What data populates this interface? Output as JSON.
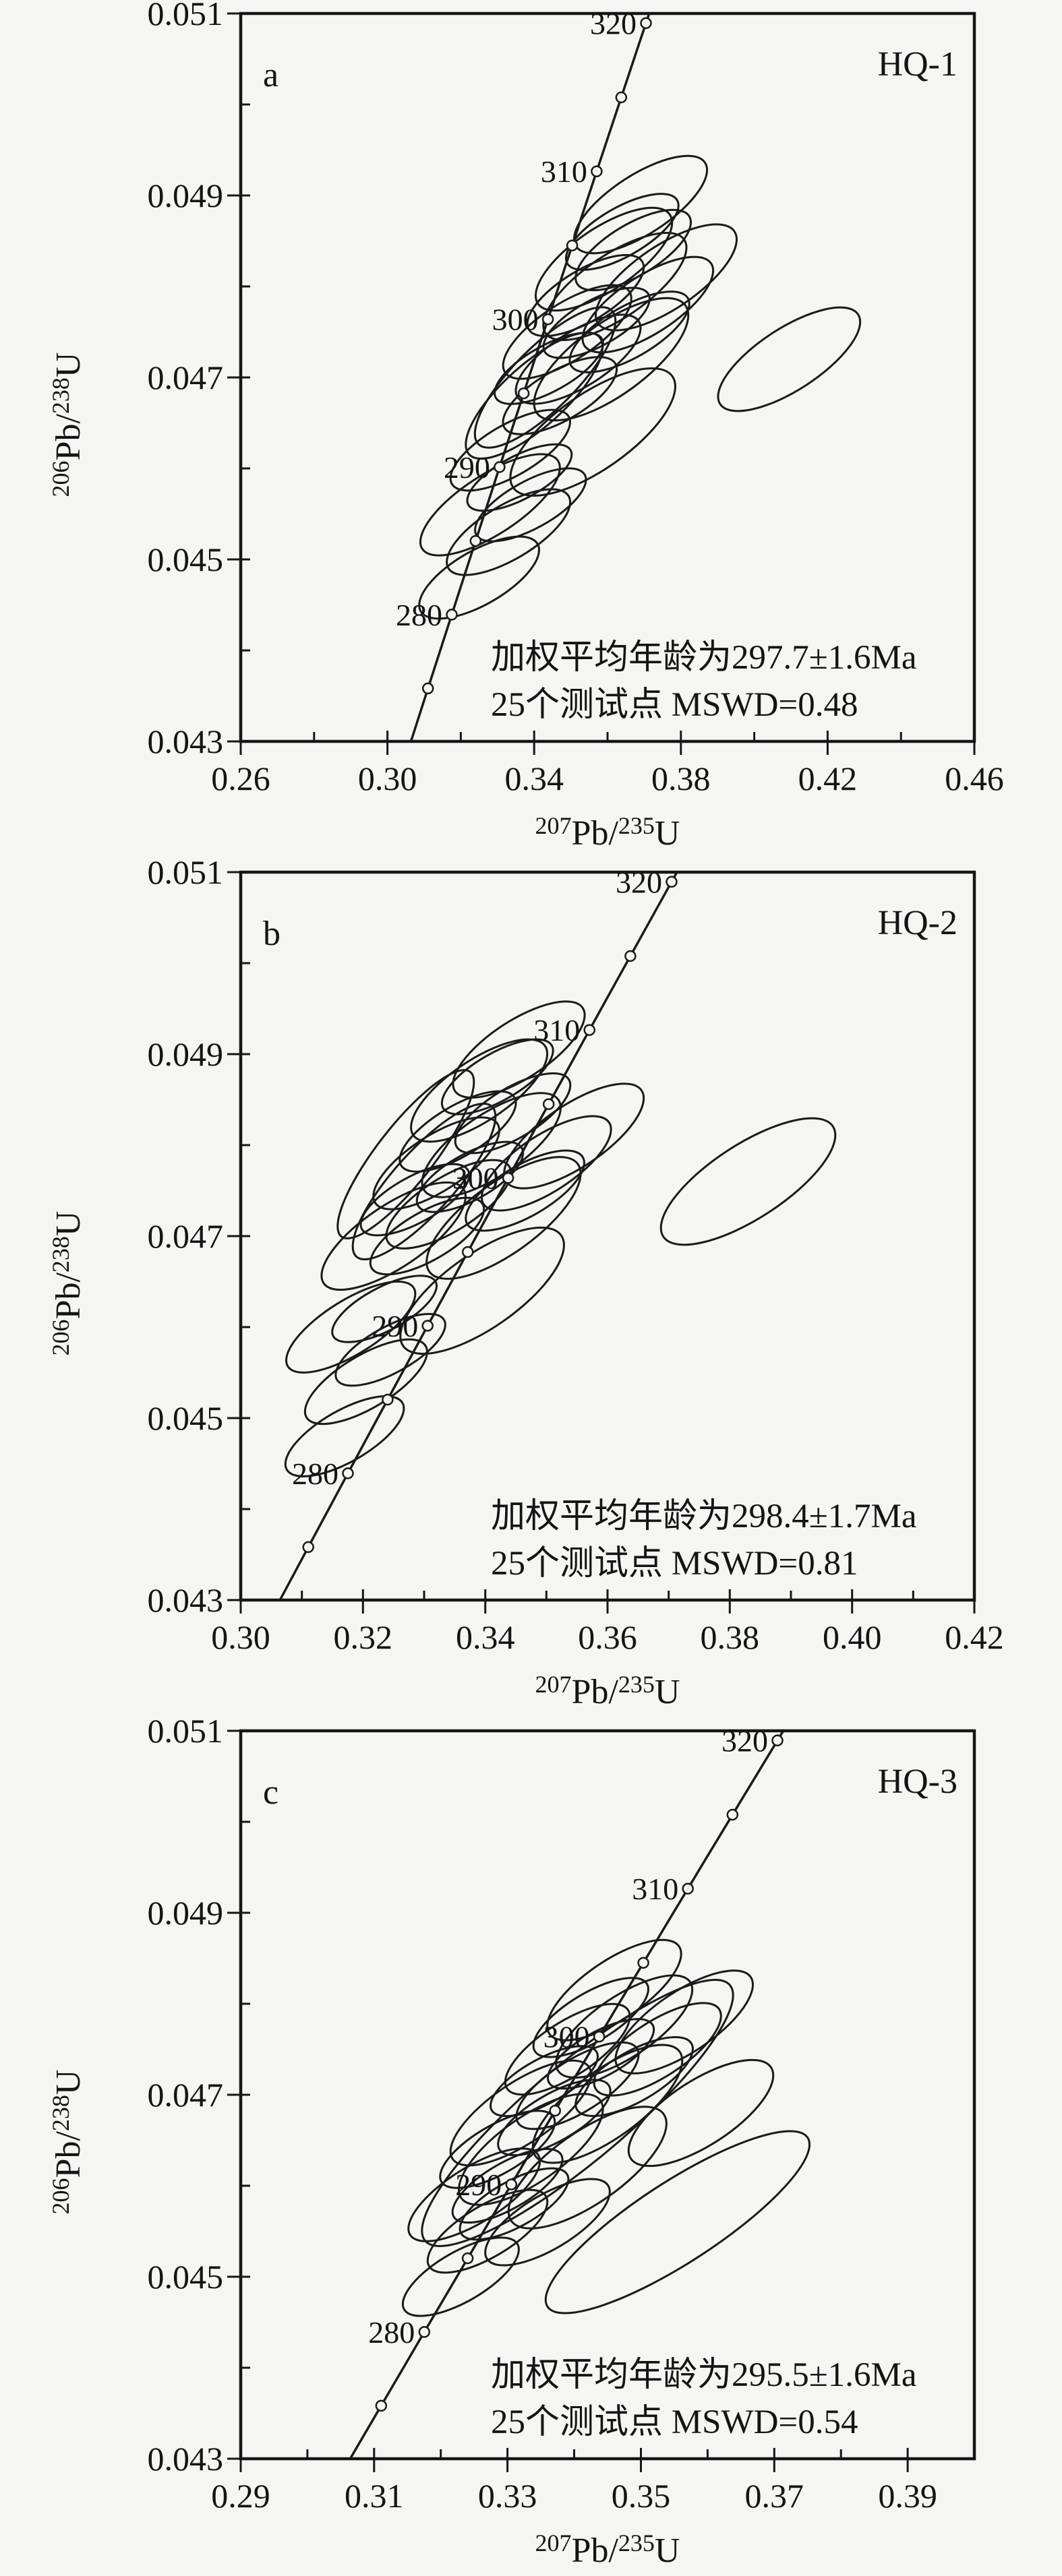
{
  "figure": {
    "background_color": "#f5f5f3",
    "ink_color": "#161616"
  },
  "concordia": {
    "curve": [
      [
        0.302053,
        0.04245
      ],
      [
        0.30462,
        0.042773
      ],
      [
        0.307192,
        0.043097
      ],
      [
        0.30977,
        0.043421
      ],
      [
        0.312352,
        0.043745
      ],
      [
        0.31494,
        0.044069
      ],
      [
        0.317533,
        0.044393
      ],
      [
        0.320131,
        0.044717
      ],
      [
        0.322734,
        0.045041
      ],
      [
        0.325343,
        0.045366
      ],
      [
        0.327956,
        0.04569
      ],
      [
        0.330575,
        0.046015
      ],
      [
        0.333199,
        0.046339
      ],
      [
        0.335828,
        0.046664
      ],
      [
        0.338462,
        0.046989
      ],
      [
        0.341101,
        0.047314
      ],
      [
        0.343746,
        0.047639
      ],
      [
        0.346396,
        0.047964
      ],
      [
        0.349051,
        0.048289
      ],
      [
        0.351711,
        0.048614
      ],
      [
        0.354377,
        0.04894
      ],
      [
        0.357047,
        0.049265
      ],
      [
        0.359724,
        0.049591
      ],
      [
        0.362405,
        0.049916
      ],
      [
        0.365092,
        0.050242
      ],
      [
        0.367784,
        0.050568
      ],
      [
        0.370481,
        0.050894
      ],
      [
        0.373184,
        0.05122
      ]
    ],
    "markers": [
      [
        270,
        0.30462,
        0.042773
      ],
      [
        275,
        0.311056,
        0.043582
      ],
      [
        280,
        0.317533,
        0.044393
      ],
      [
        285,
        0.324033,
        0.045203
      ],
      [
        290,
        0.330575,
        0.046015
      ],
      [
        295,
        0.337136,
        0.046825
      ],
      [
        300,
        0.343746,
        0.047639
      ],
      [
        305,
        0.350371,
        0.04845
      ],
      [
        310,
        0.357047,
        0.049265
      ],
      [
        315,
        0.363735,
        0.050078
      ],
      [
        320,
        0.370481,
        0.050894
      ]
    ]
  },
  "chart_data": [
    {
      "type": "scatter",
      "panel_label": "a",
      "sample_label": "HQ-1",
      "x_axis": {
        "label_parts": [
          "207",
          "Pb/",
          "235",
          "U"
        ],
        "min": 0.26,
        "max": 0.46,
        "major_step": 0.04,
        "minor_step": 0.02,
        "tick_labels": [
          "0.26",
          "0.30",
          "0.34",
          "0.38",
          "0.42",
          "0.46"
        ]
      },
      "y_axis": {
        "label_parts": [
          "206",
          "Pb/",
          "238",
          "U"
        ],
        "min": 0.043,
        "max": 0.051,
        "major_step": 0.002,
        "minor_step": 0.001,
        "tick_labels": [
          "0.043",
          "0.045",
          "0.047",
          "0.049",
          "0.051"
        ]
      },
      "age_tick_labels": [
        "280",
        "290",
        "300",
        "310",
        "320"
      ],
      "weighted_mean_age_ma": 297.7,
      "age_error_ma": 1.6,
      "n_spots": 25,
      "mswd": 0.48,
      "annotation_lines": [
        "加权平均年龄为297.7±1.6Ma",
        "25个测试点  MSWD=0.48"
      ],
      "error_ellipses": [
        [
          0.328,
          0.0456,
          120,
          44,
          -33
        ],
        [
          0.3335,
          0.0462,
          100,
          38,
          -30
        ],
        [
          0.34,
          0.0468,
          130,
          46,
          -42
        ],
        [
          0.344,
          0.0471,
          90,
          34,
          -29
        ],
        [
          0.349,
          0.0475,
          110,
          42,
          -33
        ],
        [
          0.354,
          0.0479,
          98,
          38,
          -31
        ],
        [
          0.359,
          0.0483,
          118,
          46,
          -34
        ],
        [
          0.364,
          0.0486,
          94,
          36,
          -30
        ],
        [
          0.369,
          0.0489,
          114,
          44,
          -33
        ],
        [
          0.336,
          0.0459,
          86,
          32,
          -28
        ],
        [
          0.343,
          0.047,
          140,
          46,
          -45
        ],
        [
          0.347,
          0.0468,
          95,
          37,
          -30
        ],
        [
          0.352,
          0.0472,
          106,
          41,
          -32
        ],
        [
          0.357,
          0.0476,
          88,
          34,
          -29
        ],
        [
          0.362,
          0.048,
          124,
          47,
          -34
        ],
        [
          0.367,
          0.0484,
          97,
          38,
          -31
        ],
        [
          0.333,
          0.0453,
          104,
          40,
          -31
        ],
        [
          0.339,
          0.0456,
          92,
          35,
          -29
        ],
        [
          0.361,
          0.0472,
          136,
          53,
          -36
        ],
        [
          0.366,
          0.0475,
          100,
          38,
          -30
        ],
        [
          0.371,
          0.0478,
          112,
          43,
          -33
        ],
        [
          0.376,
          0.0481,
          122,
          47,
          -34
        ],
        [
          0.325,
          0.0448,
          100,
          40,
          -30
        ],
        [
          0.356,
          0.0464,
          144,
          56,
          -35
        ],
        [
          0.4095,
          0.0472,
          122,
          46,
          -33
        ]
      ]
    },
    {
      "type": "scatter",
      "panel_label": "b",
      "sample_label": "HQ-2",
      "x_axis": {
        "label_parts": [
          "207",
          "Pb/",
          "235",
          "U"
        ],
        "min": 0.3,
        "max": 0.42,
        "major_step": 0.02,
        "minor_step": 0.01,
        "tick_labels": [
          "0.30",
          "0.32",
          "0.34",
          "0.36",
          "0.38",
          "0.40",
          "0.42"
        ]
      },
      "y_axis": {
        "label_parts": [
          "206",
          "Pb/",
          "238",
          "U"
        ],
        "min": 0.043,
        "max": 0.051,
        "major_step": 0.002,
        "minor_step": 0.001,
        "tick_labels": [
          "0.043",
          "0.045",
          "0.047",
          "0.049",
          "0.051"
        ]
      },
      "age_tick_labels": [
        "280",
        "290",
        "300",
        "310",
        "320"
      ],
      "weighted_mean_age_ma": 298.4,
      "age_error_ma": 1.7,
      "n_spots": 25,
      "mswd": 0.81,
      "annotation_lines": [
        "加权平均年龄为298.4±1.7Ma",
        "25个测试点  MSWD=0.81"
      ],
      "error_ellipses": [
        [
          0.318,
          0.046,
          110,
          40,
          -32
        ],
        [
          0.327,
          0.0479,
          155,
          42,
          -52
        ],
        [
          0.325,
          0.047,
          125,
          46,
          -34
        ],
        [
          0.3285,
          0.0474,
          90,
          34,
          -29
        ],
        [
          0.332,
          0.0478,
          108,
          41,
          -33
        ],
        [
          0.3355,
          0.04815,
          98,
          37,
          -31
        ],
        [
          0.339,
          0.0486,
          118,
          45,
          -34
        ],
        [
          0.342,
          0.04875,
          93,
          35,
          -30
        ],
        [
          0.3455,
          0.04905,
          113,
          43,
          -33
        ],
        [
          0.3235,
          0.0462,
          86,
          32,
          -28
        ],
        [
          0.33,
          0.0476,
          150,
          45,
          -48
        ],
        [
          0.3305,
          0.047,
          95,
          36,
          -30
        ],
        [
          0.334,
          0.04735,
          106,
          40,
          -32
        ],
        [
          0.3375,
          0.04765,
          88,
          34,
          -29
        ],
        [
          0.341,
          0.048,
          120,
          46,
          -34
        ],
        [
          0.3445,
          0.04835,
          97,
          37,
          -31
        ],
        [
          0.3205,
          0.0454,
          103,
          39,
          -31
        ],
        [
          0.3245,
          0.04575,
          91,
          34,
          -29
        ],
        [
          0.343,
          0.0472,
          136,
          52,
          -36
        ],
        [
          0.3465,
          0.0475,
          99,
          38,
          -30
        ],
        [
          0.35,
          0.0478,
          111,
          42,
          -33
        ],
        [
          0.3545,
          0.0481,
          121,
          46,
          -34
        ],
        [
          0.317,
          0.0448,
          99,
          38,
          -30
        ],
        [
          0.3395,
          0.0464,
          143,
          55,
          -35
        ],
        [
          0.383,
          0.0476,
          150,
          55,
          -33
        ]
      ]
    },
    {
      "type": "scatter",
      "panel_label": "c",
      "sample_label": "HQ-3",
      "x_axis": {
        "label_parts": [
          "207",
          "Pb/",
          "235",
          "U"
        ],
        "min": 0.29,
        "max": 0.4,
        "major_step": 0.02,
        "minor_step": 0.01,
        "tick_labels": [
          "0.29",
          "0.31",
          "0.33",
          "0.35",
          "0.37",
          "0.39"
        ]
      },
      "y_axis": {
        "label_parts": [
          "206",
          "Pb/",
          "238",
          "U"
        ],
        "min": 0.043,
        "max": 0.051,
        "major_step": 0.002,
        "minor_step": 0.001,
        "tick_labels": [
          "0.043",
          "0.045",
          "0.047",
          "0.049",
          "0.051"
        ]
      },
      "age_tick_labels": [
        "280",
        "290",
        "300",
        "310",
        "320"
      ],
      "weighted_mean_age_ma": 295.5,
      "age_error_ma": 1.6,
      "n_spots": 25,
      "mswd": 0.54,
      "annotation_lines": [
        "加权平均年龄为295.5±1.6Ma",
        "25个测试点  MSWD=0.54"
      ],
      "error_ellipses": [
        [
          0.325,
          0.0459,
          112,
          41,
          -32
        ],
        [
          0.3285,
          0.0464,
          96,
          36,
          -30
        ],
        [
          0.332,
          0.0468,
          122,
          45,
          -34
        ],
        [
          0.3355,
          0.04715,
          89,
          33,
          -29
        ],
        [
          0.339,
          0.0475,
          107,
          40,
          -33
        ],
        [
          0.3425,
          0.04785,
          97,
          36,
          -31
        ],
        [
          0.346,
          0.04815,
          116,
          44,
          -34
        ],
        [
          0.33,
          0.046,
          92,
          34,
          -30
        ],
        [
          0.3335,
          0.0464,
          126,
          48,
          -35
        ],
        [
          0.337,
          0.04675,
          94,
          35,
          -30
        ],
        [
          0.3405,
          0.0471,
          104,
          39,
          -32
        ],
        [
          0.344,
          0.04745,
          88,
          33,
          -29
        ],
        [
          0.3475,
          0.04775,
          118,
          45,
          -34
        ],
        [
          0.327,
          0.0455,
          101,
          38,
          -31
        ],
        [
          0.331,
          0.0458,
          90,
          34,
          -29
        ],
        [
          0.345,
          0.0469,
          132,
          50,
          -36
        ],
        [
          0.349,
          0.0472,
          98,
          37,
          -30
        ],
        [
          0.3525,
          0.0475,
          109,
          41,
          -33
        ],
        [
          0.3565,
          0.0478,
          119,
          45,
          -34
        ],
        [
          0.323,
          0.045,
          97,
          37,
          -30
        ],
        [
          0.342,
          0.0462,
          138,
          53,
          -35
        ],
        [
          0.359,
          0.0468,
          124,
          48,
          -33
        ],
        [
          0.3405,
          0.0468,
          295,
          72,
          -40
        ],
        [
          0.3555,
          0.0456,
          230,
          60,
          -33
        ],
        [
          0.336,
          0.0456,
          105,
          40,
          -31
        ]
      ]
    }
  ]
}
